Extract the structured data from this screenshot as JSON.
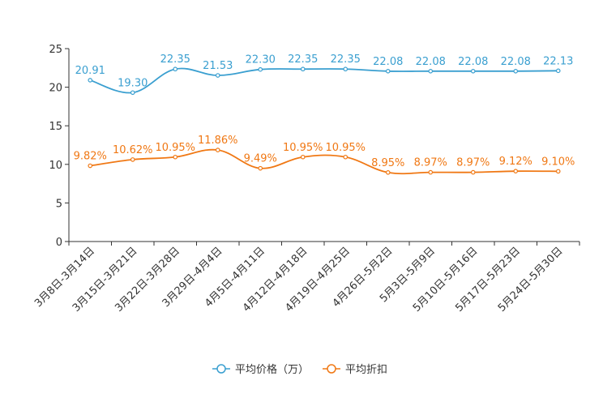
{
  "chart_data": {
    "type": "line",
    "categories": [
      "3月8日-3月14日",
      "3月15日-3月21日",
      "3月22日-3月28日",
      "3月29日-4月4日",
      "4月5日-4月11日",
      "4月12日-4月18日",
      "4月19日-4月25日",
      "4月26日-5月2日",
      "5月3日-5月9日",
      "5月10日-5月16日",
      "5月17日-5月23日",
      "5月24日-5月30日"
    ],
    "series": [
      {
        "name": "平均价格（万）",
        "color": "#3a9fd0",
        "values": [
          20.91,
          19.3,
          22.35,
          21.53,
          22.3,
          22.35,
          22.35,
          22.08,
          22.08,
          22.08,
          22.08,
          22.13
        ],
        "labels": [
          "20.91",
          "19.30",
          "22.35",
          "21.53",
          "22.30",
          "22.35",
          "22.35",
          "22.08",
          "22.08",
          "22.08",
          "22.08",
          "22.13"
        ]
      },
      {
        "name": "平均折扣",
        "color": "#f07814",
        "values": [
          9.82,
          10.62,
          10.95,
          11.86,
          9.49,
          10.95,
          10.95,
          8.95,
          8.97,
          8.97,
          9.12,
          9.1
        ],
        "labels": [
          "9.82%",
          "10.62%",
          "10.95%",
          "11.86%",
          "9.49%",
          "10.95%",
          "10.95%",
          "8.95%",
          "8.97%",
          "8.97%",
          "9.12%",
          "9.10%"
        ]
      }
    ],
    "yticks": [
      "0",
      "5",
      "10",
      "15",
      "20",
      "25"
    ],
    "ylim": [
      0,
      25
    ],
    "title": "",
    "xlabel": "",
    "ylabel": "",
    "legend_position": "bottom-center"
  }
}
